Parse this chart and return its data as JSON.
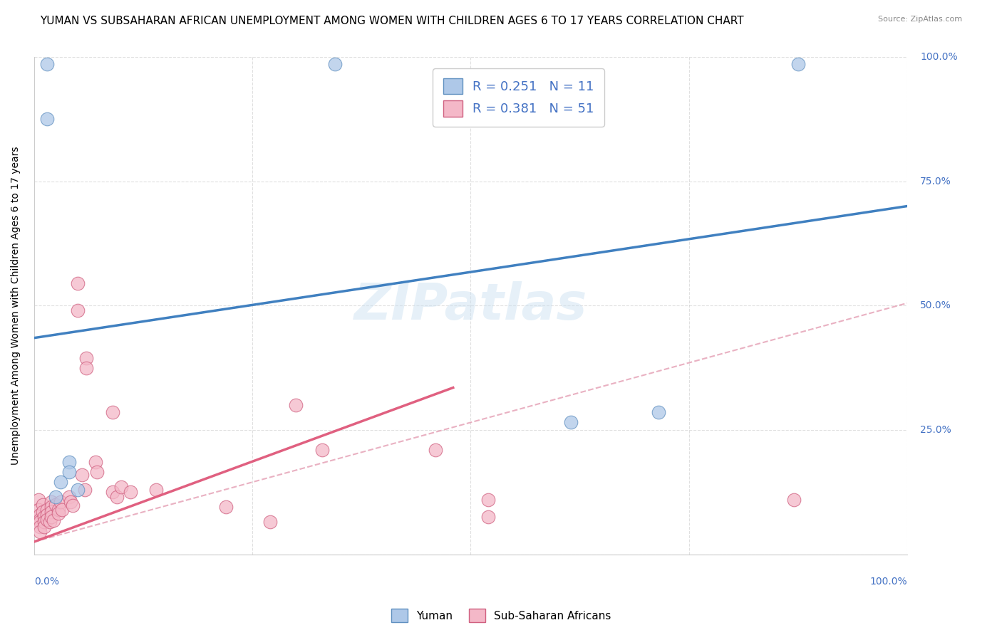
{
  "title": "YUMAN VS SUBSAHARAN AFRICAN UNEMPLOYMENT AMONG WOMEN WITH CHILDREN AGES 6 TO 17 YEARS CORRELATION CHART",
  "source": "Source: ZipAtlas.com",
  "ylabel": "Unemployment Among Women with Children Ages 6 to 17 years",
  "xlim": [
    0.0,
    1.0
  ],
  "ylim": [
    0.0,
    1.0
  ],
  "xticks": [
    0.0,
    0.25,
    0.5,
    0.75,
    1.0
  ],
  "ytick_positions": [
    0.0,
    0.25,
    0.5,
    0.75,
    1.0
  ],
  "yticklabels_right": [
    "",
    "25.0%",
    "50.0%",
    "75.0%",
    "100.0%"
  ],
  "watermark": "ZIPatlas",
  "legend_label1": "Yuman",
  "legend_label2": "Sub-Saharan Africans",
  "blue_color": "#aec8e8",
  "pink_color": "#f4b8c8",
  "blue_edge_color": "#6090c0",
  "pink_edge_color": "#d06080",
  "blue_line_color": "#4080c0",
  "pink_line_color": "#e06080",
  "pink_dash_color": "#e090a8",
  "blue_scatter": [
    [
      0.015,
      0.985
    ],
    [
      0.015,
      0.875
    ],
    [
      0.345,
      0.985
    ],
    [
      0.875,
      0.985
    ],
    [
      0.715,
      0.285
    ],
    [
      0.615,
      0.265
    ],
    [
      0.04,
      0.185
    ],
    [
      0.04,
      0.165
    ],
    [
      0.03,
      0.145
    ],
    [
      0.05,
      0.13
    ],
    [
      0.025,
      0.115
    ]
  ],
  "pink_scatter": [
    [
      0.005,
      0.11
    ],
    [
      0.005,
      0.09
    ],
    [
      0.007,
      0.08
    ],
    [
      0.007,
      0.07
    ],
    [
      0.007,
      0.065
    ],
    [
      0.007,
      0.055
    ],
    [
      0.007,
      0.045
    ],
    [
      0.01,
      0.1
    ],
    [
      0.01,
      0.085
    ],
    [
      0.012,
      0.075
    ],
    [
      0.012,
      0.065
    ],
    [
      0.012,
      0.055
    ],
    [
      0.015,
      0.09
    ],
    [
      0.015,
      0.08
    ],
    [
      0.015,
      0.07
    ],
    [
      0.018,
      0.065
    ],
    [
      0.02,
      0.105
    ],
    [
      0.02,
      0.095
    ],
    [
      0.02,
      0.085
    ],
    [
      0.02,
      0.075
    ],
    [
      0.022,
      0.068
    ],
    [
      0.05,
      0.545
    ],
    [
      0.05,
      0.49
    ],
    [
      0.025,
      0.1
    ],
    [
      0.028,
      0.09
    ],
    [
      0.028,
      0.082
    ],
    [
      0.06,
      0.395
    ],
    [
      0.06,
      0.375
    ],
    [
      0.03,
      0.105
    ],
    [
      0.032,
      0.09
    ],
    [
      0.04,
      0.115
    ],
    [
      0.042,
      0.105
    ],
    [
      0.044,
      0.098
    ],
    [
      0.055,
      0.16
    ],
    [
      0.058,
      0.13
    ],
    [
      0.07,
      0.185
    ],
    [
      0.072,
      0.165
    ],
    [
      0.09,
      0.285
    ],
    [
      0.09,
      0.125
    ],
    [
      0.095,
      0.115
    ],
    [
      0.1,
      0.135
    ],
    [
      0.11,
      0.125
    ],
    [
      0.14,
      0.13
    ],
    [
      0.22,
      0.095
    ],
    [
      0.27,
      0.065
    ],
    [
      0.3,
      0.3
    ],
    [
      0.33,
      0.21
    ],
    [
      0.46,
      0.21
    ],
    [
      0.52,
      0.11
    ],
    [
      0.52,
      0.075
    ],
    [
      0.87,
      0.11
    ]
  ],
  "blue_line": {
    "x0": 0.0,
    "y0": 0.435,
    "x1": 1.0,
    "y1": 0.7
  },
  "pink_line": {
    "x0": 0.0,
    "y0": 0.025,
    "x1": 0.48,
    "y1": 0.335
  },
  "pink_dashed_line": {
    "x0": 0.0,
    "y0": 0.025,
    "x1": 1.0,
    "y1": 0.505
  },
  "background_color": "#ffffff",
  "grid_color": "#cccccc",
  "title_fontsize": 11,
  "axis_label_fontsize": 10,
  "tick_fontsize": 10,
  "watermark_fontsize": 52,
  "watermark_color": "#c8dff0",
  "watermark_alpha": 0.45
}
